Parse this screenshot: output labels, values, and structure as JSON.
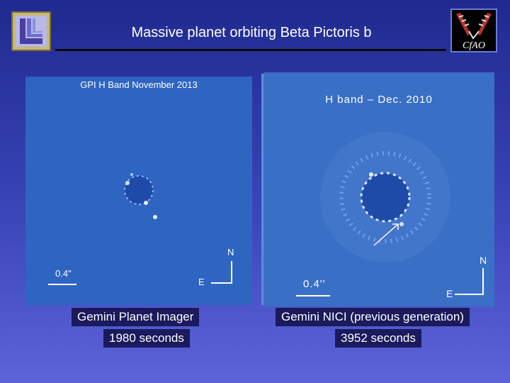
{
  "slide": {
    "title": "Massive planet orbiting Beta Pictoris b"
  },
  "left_panel": {
    "title": "GPI H Band November 2013",
    "scale_label": "0.4\"",
    "north_label": "N",
    "east_label": "E",
    "caption_instrument": "Gemini Planet Imager",
    "caption_exposure": "1980 seconds"
  },
  "right_panel": {
    "title": "H band  –  Dec. 2010",
    "scale_label": "0.4''",
    "north_label": "N",
    "east_label": "E",
    "caption_instrument": "Gemini NICI (previous generation)",
    "caption_exposure": "3952 seconds"
  },
  "logos": {
    "left": "llnl-logo",
    "right": "cfao-logo"
  },
  "colors": {
    "background_top": "#1f2a8f",
    "background_bottom": "#5d63d9",
    "panel_blue": "#2e65c0",
    "caption_bg": "#1a1a5c"
  }
}
